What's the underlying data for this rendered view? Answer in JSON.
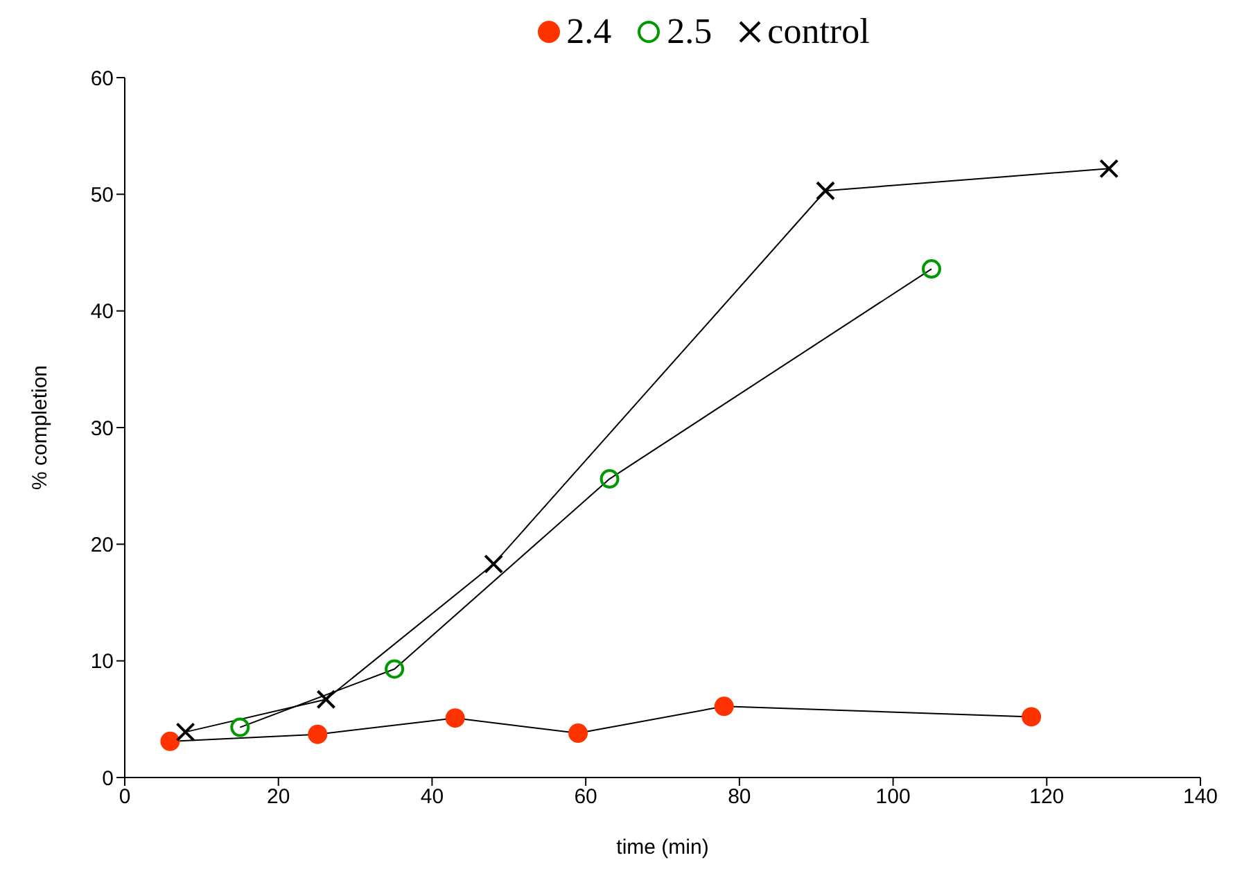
{
  "chart_data": {
    "type": "line",
    "xlabel": "time (min)",
    "ylabel": "% completion",
    "xlim": [
      0,
      140
    ],
    "xticks": [
      0,
      20,
      40,
      60,
      80,
      100,
      120,
      140
    ],
    "ylim": [
      0,
      60
    ],
    "yticks": [
      0,
      10,
      20,
      30,
      40,
      50,
      60
    ],
    "grid": false,
    "legend": "top",
    "line_style": "solid",
    "series": [
      {
        "name": "2.4",
        "color": "#ff3300",
        "marker": "circle",
        "x": [
          5.9,
          25.1,
          43,
          59,
          78,
          118
        ],
        "values": [
          3.1,
          3.7,
          5.1,
          3.8,
          6.1,
          5.2
        ]
      },
      {
        "name": "2.5",
        "color": "#009900",
        "marker": "open-circle",
        "x": [
          15,
          35.1,
          63.1,
          105
        ],
        "values": [
          4.3,
          9.3,
          25.6,
          43.6
        ]
      },
      {
        "name": "control",
        "color": "#000000",
        "marker": "cross",
        "x": [
          7.9,
          26.2,
          48,
          91.2,
          128.1
        ],
        "values": [
          3.9,
          6.7,
          18.3,
          50.3,
          52.2
        ]
      }
    ]
  }
}
